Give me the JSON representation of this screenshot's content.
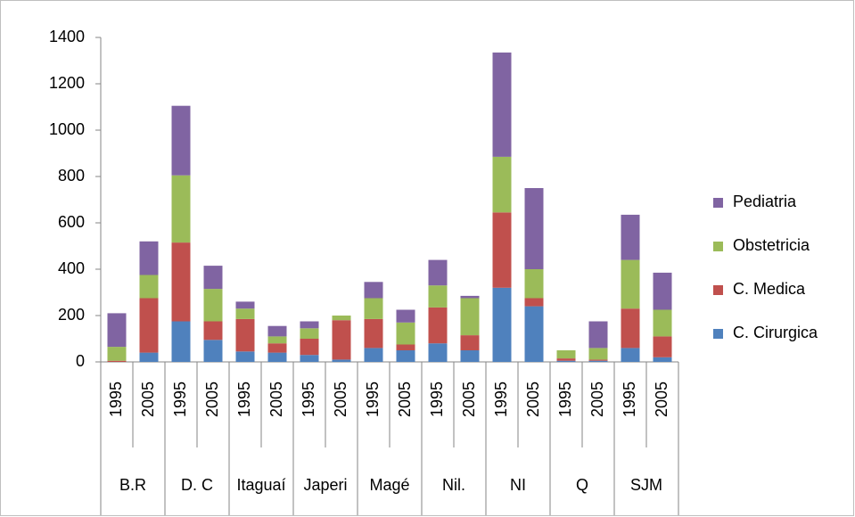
{
  "chart_data": {
    "type": "stacked_bar",
    "groups": [
      "B.R",
      "D. C",
      "Itaguaí",
      "Japeri",
      "Magé",
      "Nil.",
      "NI",
      "Q",
      "SJM"
    ],
    "categories": [
      "1995",
      "2005",
      "1995",
      "2005",
      "1995",
      "2005",
      "1995",
      "2005",
      "1995",
      "2005",
      "1995",
      "2005",
      "1995",
      "2005",
      "1995",
      "2005",
      "1995",
      "2005"
    ],
    "series": [
      {
        "name": "C. Cirurgica",
        "color": "#4f81bd",
        "values": [
          0,
          40,
          175,
          95,
          45,
          40,
          30,
          10,
          60,
          50,
          80,
          50,
          320,
          240,
          5,
          5,
          60,
          20
        ]
      },
      {
        "name": "C. Medica",
        "color": "#c0504d",
        "values": [
          5,
          235,
          340,
          80,
          140,
          40,
          70,
          170,
          125,
          25,
          155,
          65,
          325,
          35,
          10,
          5,
          170,
          90
        ]
      },
      {
        "name": "Obstetricia",
        "color": "#9bbb59",
        "values": [
          60,
          100,
          290,
          140,
          45,
          30,
          45,
          20,
          90,
          95,
          95,
          160,
          240,
          125,
          35,
          50,
          210,
          115
        ]
      },
      {
        "name": "Pediatria",
        "color": "#8064a2",
        "values": [
          145,
          145,
          300,
          100,
          30,
          45,
          30,
          0,
          70,
          55,
          110,
          10,
          450,
          350,
          0,
          115,
          195,
          160
        ]
      }
    ],
    "ylim": [
      0,
      1400
    ],
    "yticks": [
      0,
      200,
      400,
      600,
      800,
      1000,
      1200,
      1400
    ],
    "legend": "right"
  }
}
